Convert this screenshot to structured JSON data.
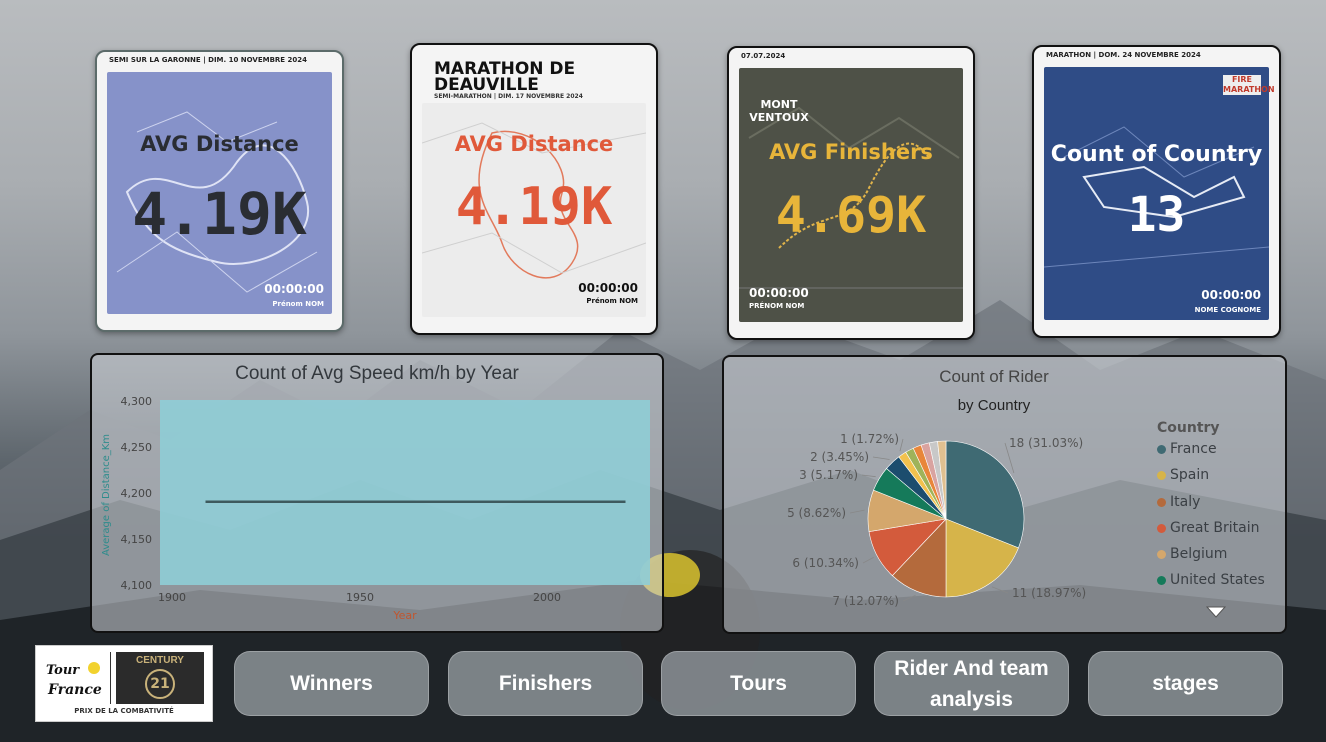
{
  "kpis": [
    {
      "label": "AVG Distance",
      "value": "4.19K",
      "poster_date": "SEMI SUR LA GARONNE | DIM. 10 NOVEMBRE 2024",
      "foot_time": "00:00:00",
      "foot_name": "Prénom NOM",
      "label_color": "#2a2d33",
      "value_color": "#2a2d33"
    },
    {
      "label": "AVG Distance",
      "value": "4.19K",
      "poster_title": "MARATHON DE DEAUVILLE",
      "poster_date": "SEMI-MARATHON | DIM. 17 NOVEMBRE 2024",
      "foot_time": "00:00:00",
      "foot_name": "Prénom NOM",
      "label_color": "#e0593a",
      "value_color": "#e0593a"
    },
    {
      "label": "AVG Finishers",
      "value": "4.69K",
      "poster_date": "07.07.2024",
      "poster_title": "MONT VENTOUX",
      "foot_time": "00:00:00",
      "foot_name": "PRÉNOM NOM",
      "label_color": "#e8b53a",
      "value_color": "#e8b53a"
    },
    {
      "label": "Count of Country",
      "value": "13",
      "poster_date": "MARATHON | DOM. 24 NOVEMBRE 2024",
      "poster_title": "FIRE MARATHON",
      "foot_time": "00:00:00",
      "foot_name": "NOME COGNOME",
      "label_color": "#ffffff",
      "value_color": "#ffffff"
    }
  ],
  "line_chart": {
    "title": "Count of Avg Speed km/h by Year",
    "xlabel": "Year",
    "ylabel": "Average of Distance_Km",
    "y_ticks": [
      "4,300",
      "4,250",
      "4,200",
      "4,150",
      "4,100"
    ],
    "x_ticks": [
      "1900",
      "1950",
      "2000"
    ]
  },
  "pie_chart": {
    "title": "Count of Rider",
    "subtitle": "by Country",
    "legend_title": "Country",
    "legend_items": [
      "France",
      "Spain",
      "Italy",
      "Great Britain",
      "Belgium",
      "United States"
    ]
  },
  "chart_data": [
    {
      "type": "line",
      "title": "Count of Avg Speed km/h by Year",
      "xlabel": "Year",
      "ylabel": "Average of Distance_Km",
      "xlim": [
        1903,
        2023
      ],
      "ylim": [
        4100,
        4300
      ],
      "series": [
        {
          "values": [
            4190,
            4190
          ]
        }
      ],
      "x": [
        1903,
        2023
      ],
      "area_fill": "#8fcdd6",
      "grid": false
    },
    {
      "type": "pie",
      "title": "Count of Rider",
      "subtitle": "by Country",
      "slices": [
        {
          "name": "France",
          "value": 18,
          "label": "18 (31.03%)",
          "color": "#3f6a73"
        },
        {
          "name": "Spain",
          "value": 11,
          "label": "11 (18.97%)",
          "color": "#d6b44a"
        },
        {
          "name": "Italy",
          "value": 7,
          "label": "7 (12.07%)",
          "color": "#b46a3c"
        },
        {
          "name": "Great Britain",
          "value": 6,
          "label": "6 (10.34%)",
          "color": "#d35b3c"
        },
        {
          "name": "Belgium",
          "value": 5,
          "label": "5 (8.62%)",
          "color": "#d4a76c"
        },
        {
          "name": "United States",
          "value": 3,
          "label": "3 (5.17%)",
          "color": "#157a5a"
        },
        {
          "value": 2,
          "label": "2 (3.45%)",
          "color": "#1c4d6e"
        },
        {
          "value": 1,
          "label": "1 (1.72%)",
          "color": "#f2c14e"
        },
        {
          "value": 1,
          "label": "",
          "color": "#9fb35a"
        },
        {
          "value": 1,
          "label": "",
          "color": "#e8863a"
        },
        {
          "value": 1,
          "label": "",
          "color": "#d9a3a0"
        },
        {
          "value": 1,
          "label": "",
          "color": "#c8c8c8"
        },
        {
          "value": 1,
          "label": "",
          "color": "#e0c090"
        }
      ],
      "legend_position": "right"
    }
  ],
  "nav": {
    "winners": "Winners",
    "finishers": "Finishers",
    "tours": "Tours",
    "rider_team_line1": "Rider And team",
    "rider_team_line2": "analysis",
    "stages": "stages"
  },
  "logo": {
    "brand1": "Tour de France",
    "brand2": "CENTURY",
    "number": "21",
    "caption": "PRIX DE LA COMBATIVITÉ"
  }
}
